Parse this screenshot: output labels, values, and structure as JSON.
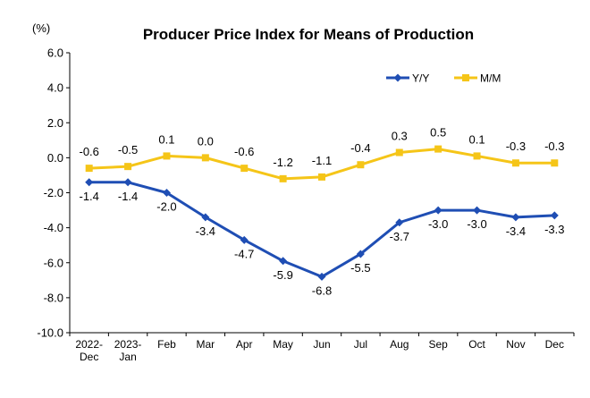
{
  "chart_data": {
    "type": "line",
    "title": "Producer Price Index for Means of Production",
    "unit_label": "(%)",
    "categories": [
      [
        "2022-",
        "Dec"
      ],
      [
        "2023-",
        "Jan"
      ],
      [
        "Feb"
      ],
      [
        "Mar"
      ],
      [
        "Apr"
      ],
      [
        "May"
      ],
      [
        "Jun"
      ],
      [
        "Jul"
      ],
      [
        "Aug"
      ],
      [
        "Sep"
      ],
      [
        "Oct"
      ],
      [
        "Nov"
      ],
      [
        "Dec"
      ]
    ],
    "ylim": [
      -10,
      6
    ],
    "yticks": [
      "6.0",
      "4.0",
      "2.0",
      "0.0",
      "-2.0",
      "-4.0",
      "-6.0",
      "-8.0",
      "-10.0"
    ],
    "ytick_values": [
      6,
      4,
      2,
      0,
      -2,
      -4,
      -6,
      -8,
      -10
    ],
    "grid": false,
    "legend_position": "top-right",
    "series": [
      {
        "name": "Y/Y",
        "color": "#1F4EB4",
        "marker": "diamond",
        "values": [
          -1.4,
          -1.4,
          -2.0,
          -3.4,
          -4.7,
          -5.9,
          -6.8,
          -5.5,
          -3.7,
          -3.0,
          -3.0,
          -3.4,
          -3.3
        ],
        "labels": [
          "-1.4",
          "-1.4",
          "-2.0",
          "-3.4",
          "-4.7",
          "-5.9",
          "-6.8",
          "-5.5",
          "-3.7",
          "-3.0",
          "-3.0",
          "-3.4",
          "-3.3"
        ]
      },
      {
        "name": "M/M",
        "color": "#F5C518",
        "marker": "square",
        "values": [
          -0.6,
          -0.5,
          0.1,
          0.0,
          -0.6,
          -1.2,
          -1.1,
          -0.4,
          0.3,
          0.5,
          0.1,
          -0.3,
          -0.3
        ],
        "labels": [
          "-0.6",
          "-0.5",
          "0.1",
          "0.0",
          "-0.6",
          "-1.2",
          "-1.1",
          "-0.4",
          "0.3",
          "0.5",
          "0.1",
          "-0.3",
          "-0.3"
        ]
      }
    ]
  }
}
